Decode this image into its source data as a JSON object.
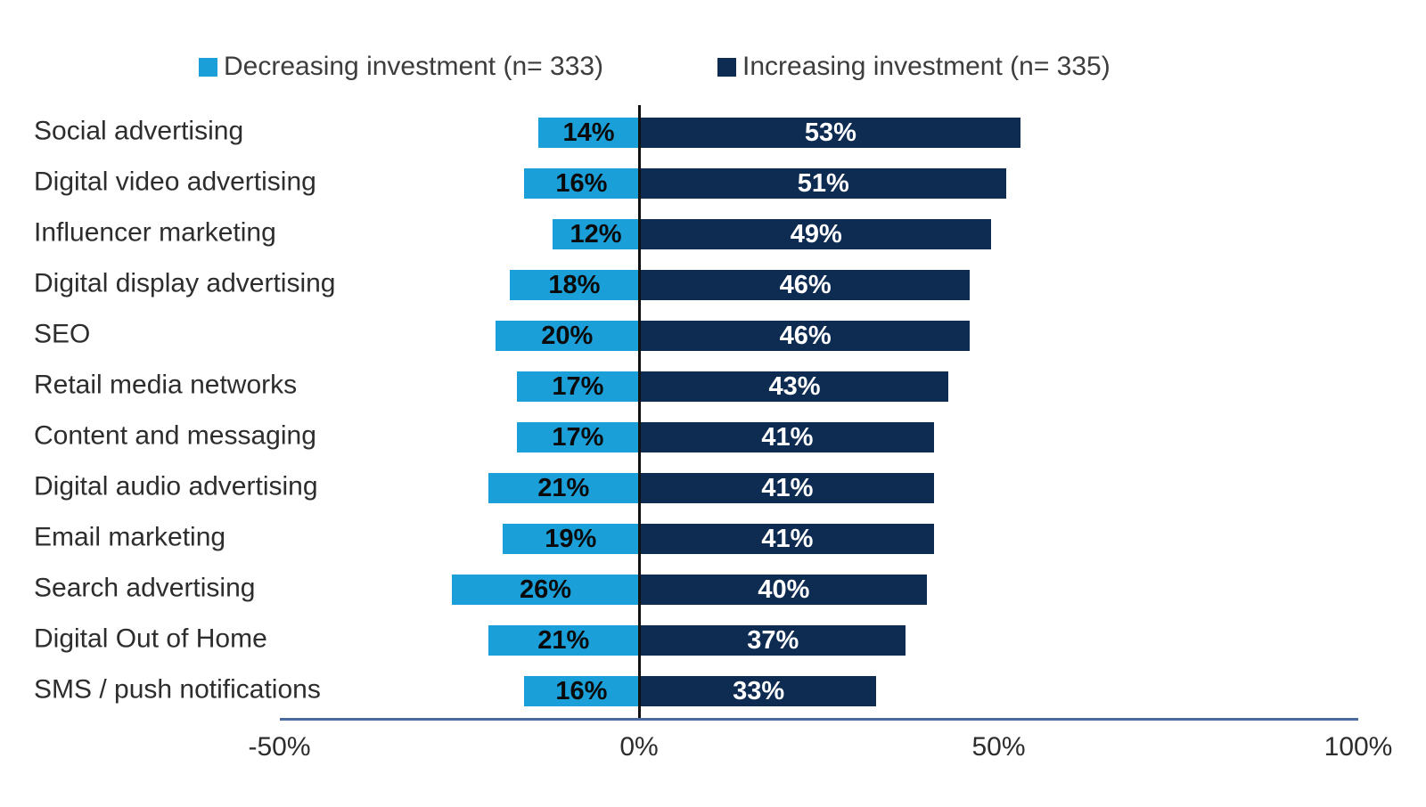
{
  "legend": [
    {
      "label": "Decreasing investment (n= 333)",
      "color": "#1b9fd9"
    },
    {
      "label": "Increasing investment (n= 335)",
      "color": "#0e2b52"
    }
  ],
  "chart_data": {
    "type": "bar",
    "variant": "horizontal-diverging",
    "title": "",
    "categories": [
      "Social advertising",
      "Digital video advertising",
      "Influencer marketing",
      "Digital display advertising",
      "SEO",
      "Retail media networks",
      "Content and messaging",
      "Digital audio advertising",
      "Email marketing",
      "Search advertising",
      "Digital Out of Home",
      "SMS / push notifications"
    ],
    "series": [
      {
        "name": "Decreasing investment (n= 333)",
        "direction": "negative",
        "color": "#1b9fd9",
        "values": [
          14,
          16,
          12,
          18,
          20,
          17,
          17,
          21,
          19,
          26,
          21,
          16
        ],
        "labels": [
          "14%",
          "16%",
          "12%",
          "18%",
          "20%",
          "17%",
          "17%",
          "21%",
          "19%",
          "26%",
          "21%",
          "16%"
        ]
      },
      {
        "name": "Increasing investment (n= 335)",
        "direction": "positive",
        "color": "#0e2b52",
        "values": [
          53,
          51,
          49,
          46,
          46,
          43,
          41,
          41,
          41,
          40,
          37,
          33
        ],
        "labels": [
          "53%",
          "51%",
          "49%",
          "46%",
          "46%",
          "43%",
          "41%",
          "41%",
          "41%",
          "40%",
          "37%",
          "33%"
        ]
      }
    ],
    "x_axis": {
      "tick_labels": [
        "-50%",
        "0%",
        "50%",
        "100%"
      ],
      "tick_values": [
        -50,
        0,
        50,
        100
      ],
      "range": [
        -50,
        100
      ]
    },
    "value_suffix": "%",
    "grid": false,
    "legend_position": "top",
    "axis_line_color": "#4a6b9e",
    "zero_line_color": "#111111"
  }
}
